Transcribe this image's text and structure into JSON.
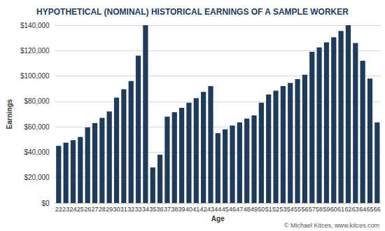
{
  "chart_data": {
    "type": "bar",
    "title": "HYPOTHETICAL (NOMINAL) HISTORICAL EARNINGS OF A SAMPLE WORKER",
    "x_label": "Age",
    "y_label": "Earnings",
    "annotations": [
      "© Michael Kitces, www.kitces.com"
    ],
    "categories": [
      "22",
      "23",
      "24",
      "25",
      "26",
      "27",
      "28",
      "29",
      "30",
      "31",
      "32",
      "33",
      "34",
      "35",
      "36",
      "37",
      "38",
      "39",
      "40",
      "41",
      "42",
      "43",
      "44",
      "45",
      "46",
      "47",
      "48",
      "49",
      "50",
      "51",
      "52",
      "53",
      "54",
      "55",
      "56",
      "57",
      "58",
      "59",
      "60",
      "61",
      "62",
      "63",
      "64",
      "65",
      "66"
    ],
    "values": [
      45000,
      47500,
      49500,
      52000,
      59500,
      63000,
      67000,
      72000,
      83000,
      89500,
      96000,
      116000,
      140000,
      28000,
      38000,
      68000,
      71500,
      75000,
      79000,
      82500,
      87500,
      92000,
      55000,
      58000,
      61000,
      63500,
      66500,
      69000,
      79000,
      85500,
      88500,
      92000,
      94500,
      97500,
      101000,
      119000,
      122500,
      126500,
      130500,
      135500,
      140000,
      126000,
      112000,
      98000,
      63500
    ],
    "color": "#1f3b5c",
    "ylim": [
      0,
      140000
    ],
    "yticks": [
      {
        "value": 0,
        "label": "$0"
      },
      {
        "value": 20000,
        "label": "$20,000"
      },
      {
        "value": 40000,
        "label": "$40,000"
      },
      {
        "value": 60000,
        "label": "$60,000"
      },
      {
        "value": 80000,
        "label": "$80,000"
      },
      {
        "value": 100000,
        "label": "$100,000"
      },
      {
        "value": 120000,
        "label": "$120,000"
      },
      {
        "value": 140000,
        "label": "$140,000"
      }
    ],
    "grid": true
  }
}
